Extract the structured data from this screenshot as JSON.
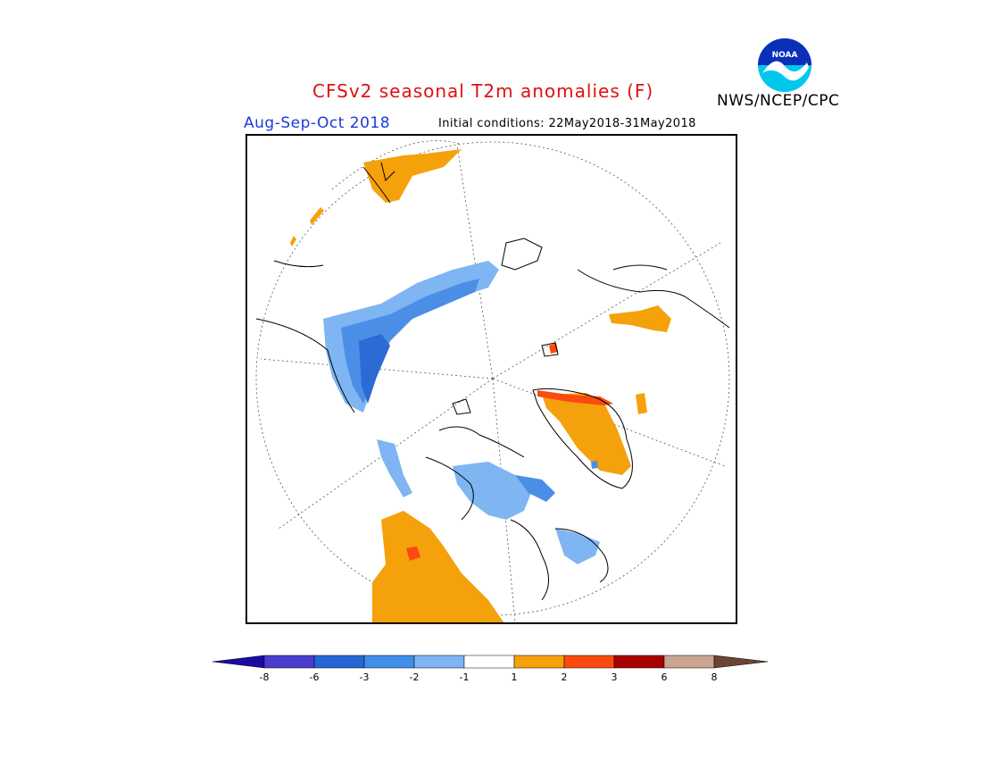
{
  "header": {
    "title": "CFSv2 seasonal T2m anomalies (F)",
    "season": "Aug-Sep-Oct 2018",
    "initial_conditions": "Initial conditions: 22May2018-31May2018",
    "agency": "NWS/NCEP/CPC",
    "logo_text": "NOAA"
  },
  "colors": {
    "title": "#e01010",
    "season": "#1a3adf",
    "warm1": "#f5a10b",
    "warm2": "#fa4a10",
    "warm3": "#b00000",
    "cold1": "#7fb5f2",
    "cold2": "#4b8ee6",
    "cold3": "#2a6bd4"
  },
  "colorbar": {
    "ticks": [
      "-8",
      "-6",
      "-3",
      "-2",
      "-1",
      "1",
      "2",
      "3",
      "6",
      "8"
    ],
    "colors": [
      "#1a0aa3",
      "#4a3ccf",
      "#2466d4",
      "#3f8ee8",
      "#7db4f2",
      "#ffffff",
      "#f5a10b",
      "#fa4a10",
      "#a80000",
      "#c9a490",
      "#6b4433"
    ]
  }
}
